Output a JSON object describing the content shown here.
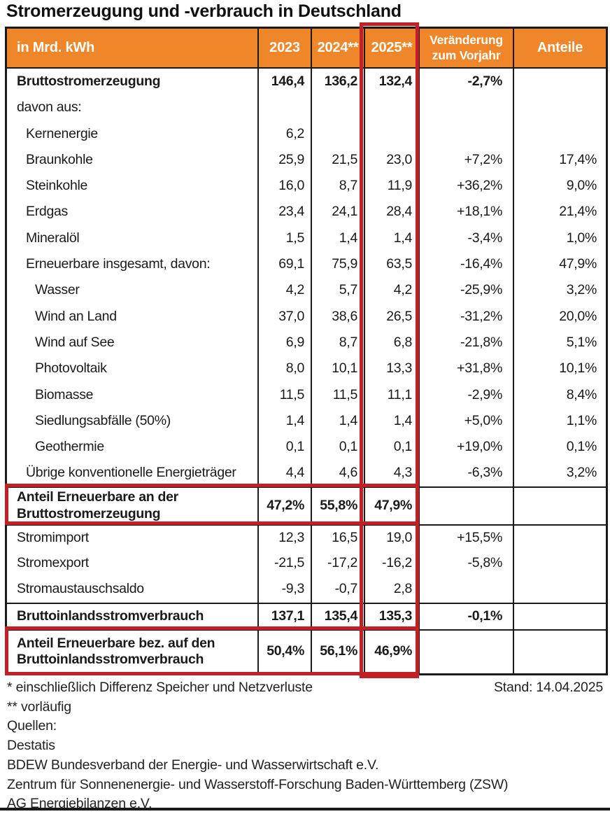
{
  "title": "Stromerzeugung und -verbrauch in Deutschland",
  "table": {
    "unit_header": "in Mrd. kWh",
    "year_headers": [
      "2023",
      "2024**",
      "2025**"
    ],
    "change_header": "Veränderung\nzum Vorjahr",
    "share_header": "Anteile",
    "rows": [
      {
        "label": "Bruttostromerzeugung",
        "indent": 0,
        "bold": true,
        "cls": "",
        "values": [
          "146,4",
          "136,2",
          "132,4",
          "-2,7%",
          ""
        ]
      },
      {
        "label": "davon aus:",
        "indent": 0,
        "bold": false,
        "cls": "",
        "values": [
          "",
          "",
          "",
          "",
          ""
        ]
      },
      {
        "label": "Kernenergie",
        "indent": 1,
        "bold": false,
        "cls": "",
        "values": [
          "6,2",
          "",
          "",
          "",
          ""
        ]
      },
      {
        "label": "Braunkohle",
        "indent": 1,
        "bold": false,
        "cls": "",
        "values": [
          "25,9",
          "21,5",
          "23,0",
          "+7,2%",
          "17,4%"
        ]
      },
      {
        "label": "Steinkohle",
        "indent": 1,
        "bold": false,
        "cls": "",
        "values": [
          "16,0",
          "8,7",
          "11,9",
          "+36,2%",
          "9,0%"
        ]
      },
      {
        "label": "Erdgas",
        "indent": 1,
        "bold": false,
        "cls": "",
        "values": [
          "23,4",
          "24,1",
          "28,4",
          "+18,1%",
          "21,4%"
        ]
      },
      {
        "label": "Mineralöl",
        "indent": 1,
        "bold": false,
        "cls": "",
        "values": [
          "1,5",
          "1,4",
          "1,4",
          "-3,4%",
          "1,0%"
        ]
      },
      {
        "label": "Erneuerbare insgesamt, davon:",
        "indent": 1,
        "bold": false,
        "cls": "",
        "values": [
          "69,1",
          "75,9",
          "63,5",
          "-16,4%",
          "47,9%"
        ]
      },
      {
        "label": "Wasser",
        "indent": 2,
        "bold": false,
        "cls": "",
        "values": [
          "4,2",
          "5,7",
          "4,2",
          "-25,9%",
          "3,2%"
        ]
      },
      {
        "label": "Wind an Land",
        "indent": 2,
        "bold": false,
        "cls": "",
        "values": [
          "37,0",
          "38,6",
          "26,5",
          "-31,2%",
          "20,0%"
        ]
      },
      {
        "label": "Wind auf See",
        "indent": 2,
        "bold": false,
        "cls": "",
        "values": [
          "6,9",
          "8,7",
          "6,8",
          "-21,8%",
          "5,1%"
        ]
      },
      {
        "label": "Photovoltaik",
        "indent": 2,
        "bold": false,
        "cls": "",
        "values": [
          "8,0",
          "10,1",
          "13,3",
          "+31,8%",
          "10,1%"
        ]
      },
      {
        "label": "Biomasse",
        "indent": 2,
        "bold": false,
        "cls": "",
        "values": [
          "11,5",
          "11,5",
          "11,1",
          "-2,9%",
          "8,4%"
        ]
      },
      {
        "label": "Siedlungsabfälle (50%)",
        "indent": 2,
        "bold": false,
        "cls": "",
        "values": [
          "1,4",
          "1,4",
          "1,4",
          "+5,0%",
          "1,1%"
        ]
      },
      {
        "label": "Geothermie",
        "indent": 2,
        "bold": false,
        "cls": "",
        "values": [
          "0,1",
          "0,1",
          "0,1",
          "+19,0%",
          "0,1%"
        ]
      },
      {
        "label": "Übrige konventionelle Energieträger",
        "indent": 1,
        "bold": false,
        "cls": "",
        "values": [
          "4,4",
          "4,6",
          "4,3",
          "-6,3%",
          "3,2%"
        ]
      },
      {
        "label": "Anteil Erneuerbare an der\nBruttostromerzeugung",
        "indent": 0,
        "bold": true,
        "cls": "bt tall",
        "values": [
          "47,2%",
          "55,8%",
          "47,9%",
          "",
          ""
        ]
      },
      {
        "label": "Stromimport",
        "indent": 0,
        "bold": false,
        "cls": "bt",
        "values": [
          "12,3",
          "16,5",
          "19,0",
          "+15,5%",
          ""
        ]
      },
      {
        "label": "Stromexport",
        "indent": 0,
        "bold": false,
        "cls": "",
        "values": [
          "-21,5",
          "-17,2",
          "-16,2",
          "-5,8%",
          ""
        ]
      },
      {
        "label": "Stromaustauschsaldo",
        "indent": 0,
        "bold": false,
        "cls": "",
        "values": [
          "-9,3",
          "-0,7",
          "2,8",
          "",
          ""
        ]
      },
      {
        "label": "Bruttoinlandsstromverbrauch",
        "indent": 0,
        "bold": true,
        "cls": "bt h38",
        "values": [
          "137,1",
          "135,4",
          "135,3",
          "-0,1%",
          ""
        ]
      },
      {
        "label": "Anteil Erneuerbare bez. auf den\nBruttoinlandsstromverbrauch",
        "indent": 0,
        "bold": true,
        "cls": "bt tall2",
        "values": [
          "50,4%",
          "56,1%",
          "46,9%",
          "",
          ""
        ]
      }
    ]
  },
  "footer": {
    "footnote_star": "* einschließlich Differenz Speicher und Netzverluste",
    "stand": "Stand: 14.04.2025",
    "footnote_dstar": "** vorläufig",
    "sources_label": "Quellen:",
    "sources": [
      "Destatis",
      "BDEW Bundesverband der Energie- und Wasserwirtschaft e.V.",
      "Zentrum für Sonnenenergie- und Wasserstoff-Forschung Baden-Württemberg (ZSW)",
      "AG Energiebilanzen e.V."
    ]
  },
  "colors": {
    "header_orange": "#F0862A",
    "highlight_red": "#C32026",
    "border_black": "#1a1a1a"
  }
}
